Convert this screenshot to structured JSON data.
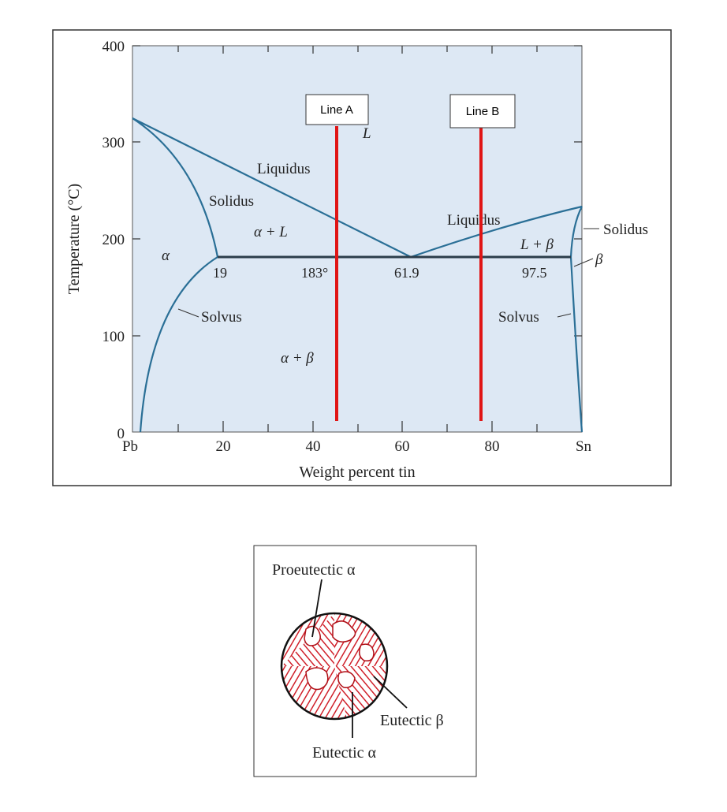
{
  "diagram": {
    "y_axis": {
      "title": "Temperature (°C)",
      "ticks": [
        "400",
        "300",
        "200",
        "100",
        "0"
      ]
    },
    "x_axis": {
      "title": "Weight percent tin",
      "ticks": [
        "Pb",
        "20",
        "40",
        "60",
        "80",
        "Sn"
      ]
    },
    "regions": [
      "L",
      "Liquidus",
      "Solidus",
      "α + L",
      "α",
      "19",
      "183°",
      "61.9",
      "Liquidus",
      "L + β",
      "97.5",
      "Solidus",
      "β",
      "Solvus",
      "Solvus",
      "α + β"
    ],
    "lines": [
      {
        "label": "Line A"
      },
      {
        "label": "Line B"
      }
    ]
  },
  "microstructure": {
    "labels": [
      "Proeutectic α",
      "Eutectic β",
      "Eutectic α"
    ]
  }
}
